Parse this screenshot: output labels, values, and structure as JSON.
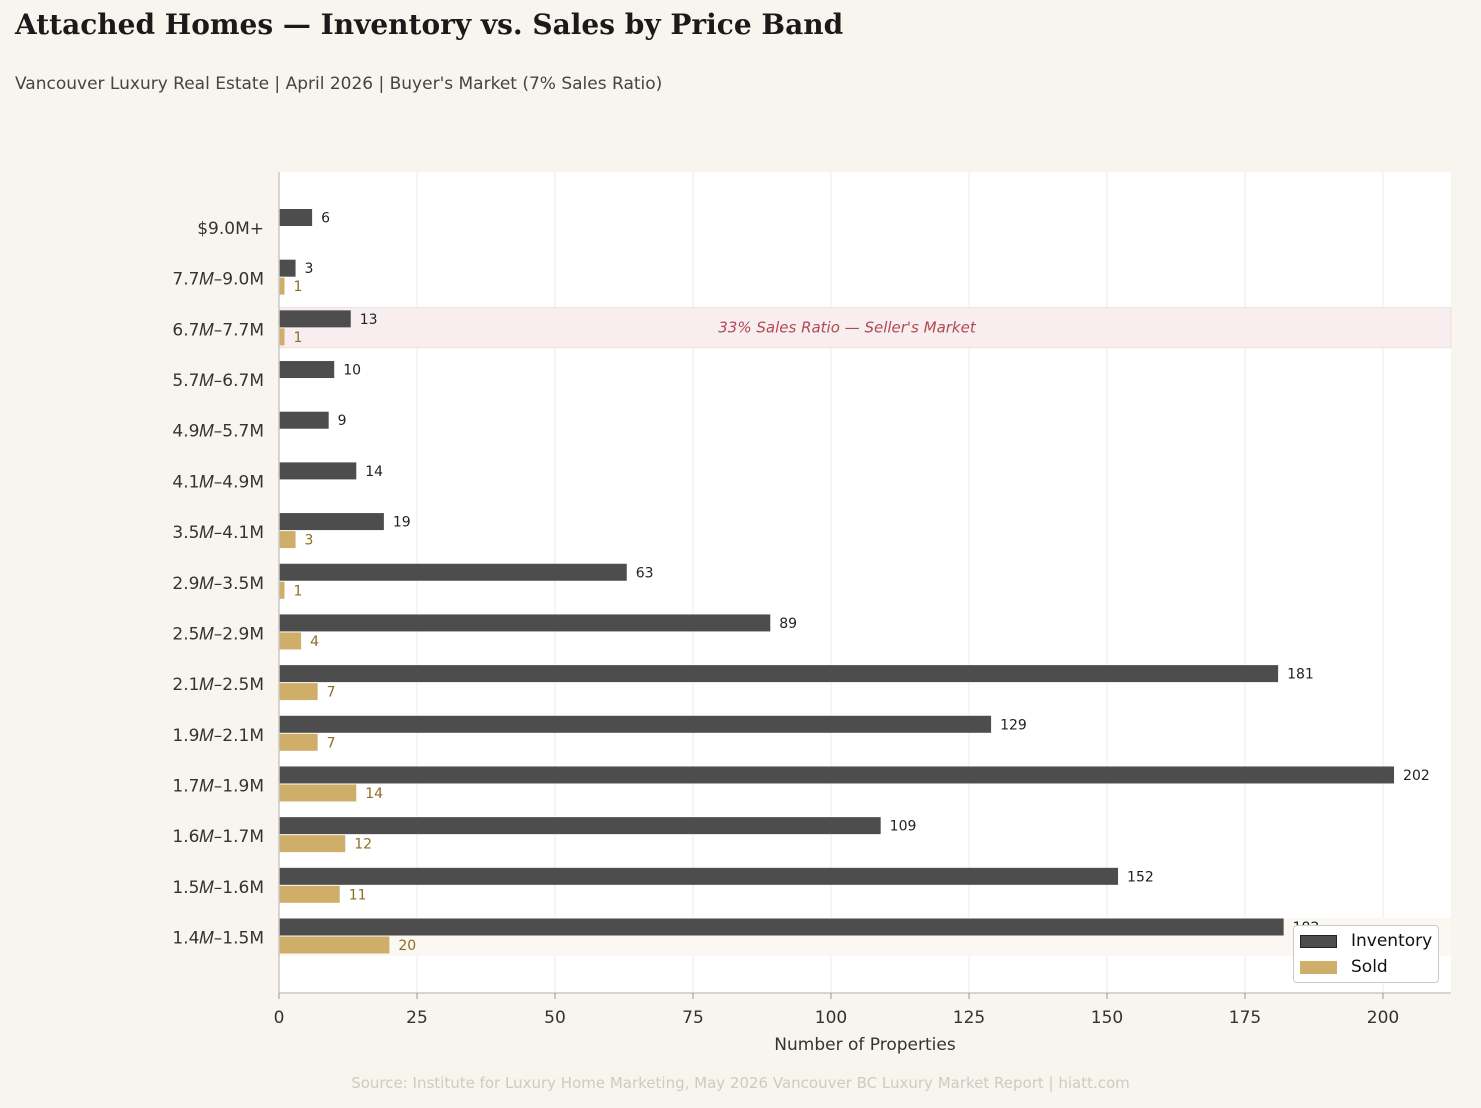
{
  "title": "Attached Homes — Inventory vs. Sales by Price Band",
  "subtitle": "Vancouver Luxury Real Estate  |  April 2026  |  Buyer's Market (7% Sales Ratio)",
  "source": "Source: Institute for Luxury Home Marketing, May 2026 Vancouver BC Luxury Market Report  |  hiatt.com",
  "colors": {
    "inventory": "#4d4d4d",
    "sold": "#cfae6a",
    "sold_label": "#8c6d22",
    "highlight_fill": "#f8eef0",
    "highlight_text": "#b04a50",
    "background": "#f8f5ef"
  },
  "chart_data": {
    "type": "bar",
    "orientation": "horizontal",
    "categories": [
      "$9.0M+",
      "7.7𝑀–9.0M",
      "6.7𝑀–7.7M",
      "5.7𝑀–6.7M",
      "4.9𝑀–5.7M",
      "4.1𝑀–4.9M",
      "3.5𝑀–4.1M",
      "2.9𝑀–3.5M",
      "2.5𝑀–2.9M",
      "2.1𝑀–2.5M",
      "1.9𝑀–2.1M",
      "1.7𝑀–1.9M",
      "1.6𝑀–1.7M",
      "1.5𝑀–1.6M",
      "1.4𝑀–1.5M"
    ],
    "series": [
      {
        "name": "Inventory",
        "values": [
          6,
          3,
          13,
          10,
          9,
          14,
          19,
          63,
          89,
          181,
          129,
          202,
          109,
          152,
          182
        ]
      },
      {
        "name": "Sold",
        "values": [
          0,
          1,
          1,
          0,
          0,
          0,
          3,
          1,
          4,
          7,
          7,
          14,
          12,
          11,
          20
        ]
      }
    ],
    "xlabel": "Number of Properties",
    "ylabel": "",
    "xlim": [
      0,
      212
    ],
    "xticks": [
      0,
      25,
      50,
      75,
      100,
      125,
      150,
      175,
      200
    ],
    "grid": "vertical",
    "legend": "bottom-right",
    "annotations": [
      {
        "category": "7.7𝑀–9.0M",
        "text": "33% Sales Ratio — Seller's Market"
      }
    ]
  }
}
